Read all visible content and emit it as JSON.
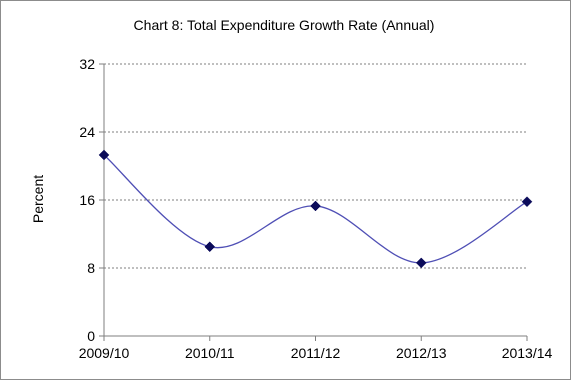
{
  "chart_data": {
    "type": "line",
    "title": "Chart 8: Total Expenditure Growth Rate (Annual)",
    "xlabel": "",
    "ylabel": "Percent",
    "categories": [
      "2009/10",
      "2010/11",
      "2011/12",
      "2012/13",
      "2013/14"
    ],
    "series": [
      {
        "values": [
          21.3,
          10.5,
          15.3,
          8.6,
          15.8
        ],
        "color": "#4f4fb5",
        "marker": "diamond",
        "marker_color": "#0b0b5a",
        "smooth": true
      }
    ],
    "ylim": [
      0,
      32
    ],
    "yticks": [
      0,
      8,
      16,
      24,
      32
    ],
    "grid": true,
    "grid_style": "dashed",
    "legend": "none"
  }
}
